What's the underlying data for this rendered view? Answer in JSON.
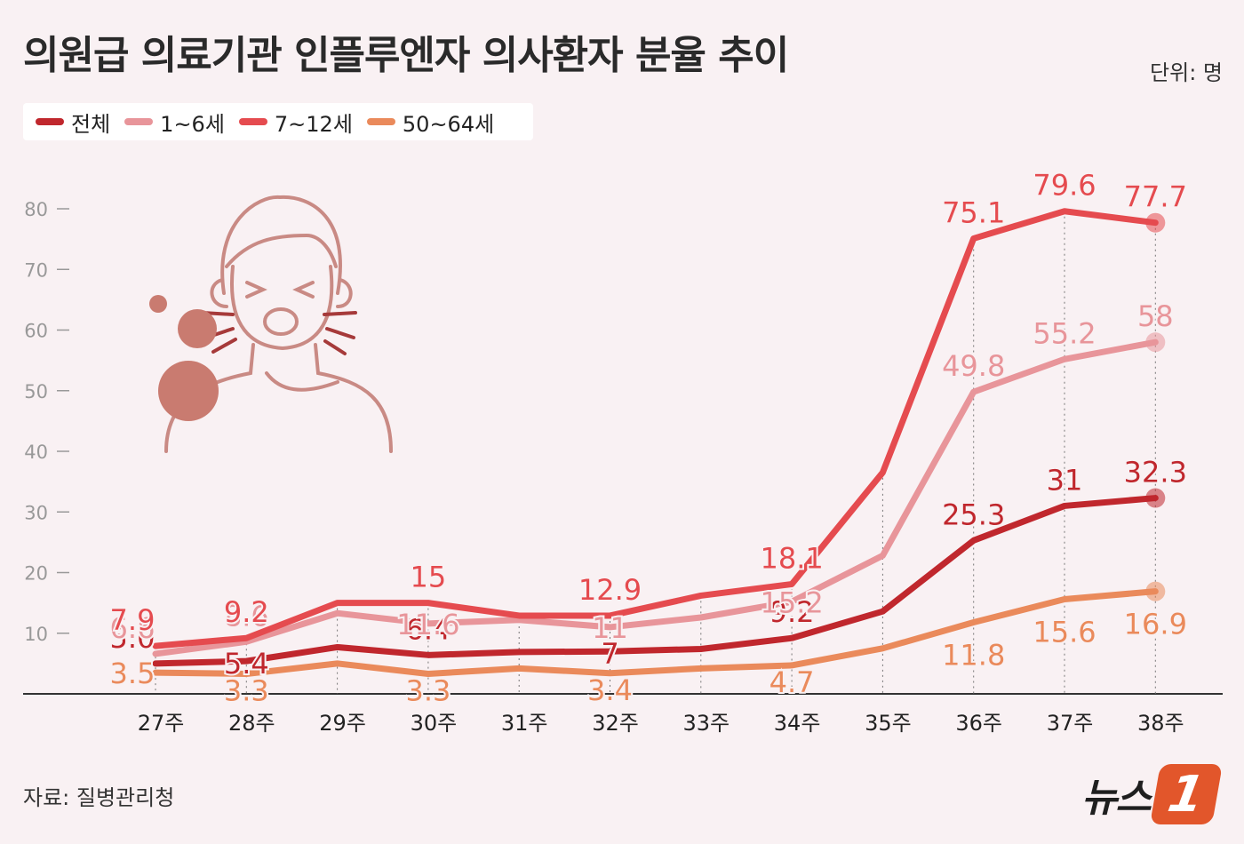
{
  "header": {
    "title": "의원급 의료기관 인플루엔자 의사환자 분율 추이",
    "unit": "단위: 명"
  },
  "footer": {
    "source": "자료: 질병관리청",
    "logo_text": "뉴스",
    "logo_mark": "1"
  },
  "colors": {
    "total": "#c0272d",
    "age_1_6": "#e8959a",
    "age_7_12": "#e54b4f",
    "age_50_64": "#ea8a5b",
    "axis": "#333333",
    "tick": "#999999",
    "illustration": "#c98a84"
  },
  "chart_data": {
    "type": "line",
    "categories": [
      "27주",
      "28주",
      "29주",
      "30주",
      "31주",
      "32주",
      "33주",
      "34주",
      "35주",
      "36주",
      "37주",
      "38주"
    ],
    "y_ticks": [
      "10",
      "20",
      "30",
      "40",
      "50",
      "60",
      "70",
      "80"
    ],
    "ylim": [
      0,
      80
    ],
    "series": [
      {
        "name": "전체",
        "key": "total",
        "values": [
          5.0,
          5.4,
          7.7,
          6.4,
          6.9,
          7.0,
          7.4,
          9.2,
          13.6,
          25.3,
          31.0,
          32.3
        ],
        "labels": [
          "5.0",
          "5.4",
          "",
          "6.4",
          "",
          "7",
          "",
          "9.2",
          "",
          "25.3",
          "31",
          "32.3"
        ]
      },
      {
        "name": "1~6세",
        "key": "age_1_6",
        "values": [
          6.6,
          8.6,
          13.3,
          11.6,
          12.2,
          11.0,
          12.6,
          15.2,
          22.8,
          49.8,
          55.2,
          58.0
        ],
        "labels": [
          "6.6",
          "8.6",
          "",
          "11.6",
          "",
          "11",
          "",
          "15.2",
          "",
          "49.8",
          "55.2",
          "58"
        ]
      },
      {
        "name": "7~12세",
        "key": "age_7_12",
        "values": [
          7.9,
          9.2,
          15.0,
          15.0,
          12.9,
          12.9,
          16.2,
          18.1,
          36.5,
          75.1,
          79.6,
          77.7
        ],
        "labels": [
          "7.9",
          "9.2",
          "",
          "15",
          "",
          "12.9",
          "",
          "18.1",
          "",
          "75.1",
          "79.6",
          "77.7"
        ]
      },
      {
        "name": "50~64세",
        "key": "age_50_64",
        "values": [
          3.5,
          3.3,
          5.0,
          3.3,
          4.2,
          3.4,
          4.2,
          4.7,
          7.5,
          11.8,
          15.6,
          16.9
        ],
        "labels": [
          "3.5",
          "3.3",
          "",
          "3.3",
          "",
          "3.4",
          "",
          "4.7",
          "",
          "11.8",
          "15.6",
          "16.9"
        ]
      }
    ],
    "grid": false,
    "legend": "top-left"
  }
}
